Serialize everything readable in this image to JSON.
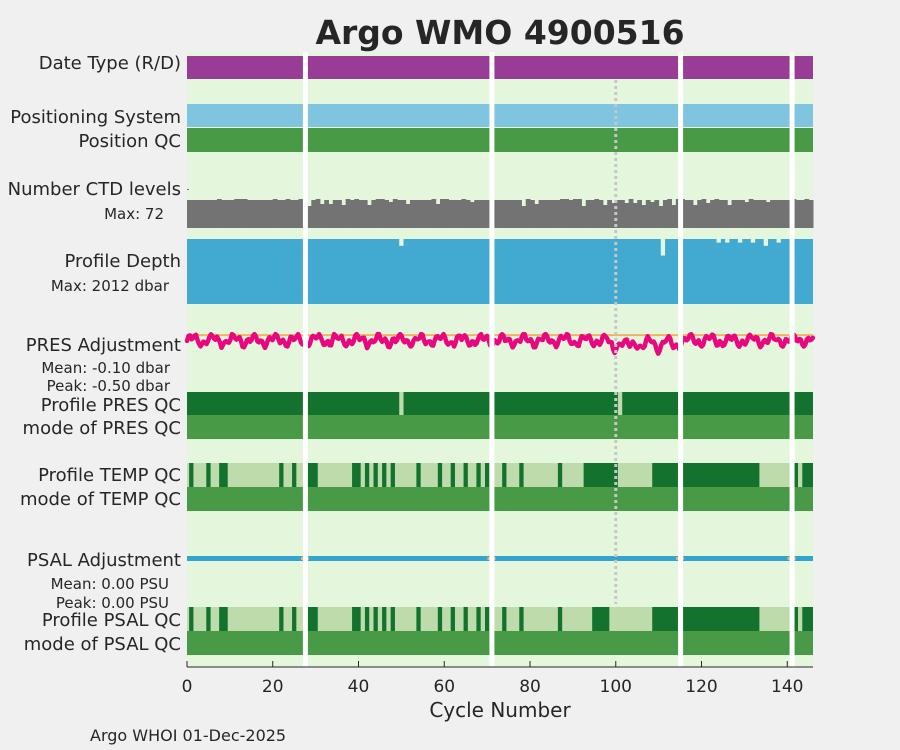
{
  "chart_data": {
    "type": "timeline-panels",
    "title": "Argo WMO 4900516",
    "xlabel": "Cycle Number",
    "xlim": [
      0,
      146
    ],
    "xticks": [
      0,
      20,
      40,
      60,
      80,
      100,
      120,
      140
    ],
    "xtick_labels": [
      "0",
      "20",
      "40",
      "60",
      "80",
      "100",
      "120",
      "140"
    ],
    "footer": "Argo WHOI 01-Dec-2025",
    "gaps": [
      27.5,
      71,
      115,
      141
    ],
    "highlight_cycle": 100,
    "row_labels": {
      "date_type": "Date Type (R/D)",
      "positioning_system": "Positioning System",
      "position_qc": "Position QC",
      "ctd_levels": "Number CTD levels",
      "ctd_max": "Max: 72",
      "profile_depth": "Profile Depth",
      "depth_max": "Max: 2012 dbar",
      "pres_adjustment": "PRES Adjustment",
      "pres_mean": "Mean: -0.10 dbar",
      "pres_peak": "Peak: -0.50 dbar",
      "profile_pres_qc": "Profile PRES QC",
      "mode_pres_qc": "mode of PRES QC",
      "profile_temp_qc": "Profile TEMP QC",
      "mode_temp_qc": "mode of TEMP QC",
      "psal_adjustment": "PSAL Adjustment",
      "psal_mean": "Mean: 0.00 PSU",
      "psal_peak": "Peak: 0.00 PSU",
      "profile_psal_qc": "Profile PSAL QC",
      "mode_psal_qc": "mode of PSAL QC"
    },
    "ctd_levels": {
      "max": 72,
      "gaps_low": [
        28,
        31,
        33,
        36,
        42,
        47,
        51,
        58,
        66,
        78,
        81,
        92,
        97,
        99,
        102,
        104,
        106,
        108,
        110,
        113,
        118,
        121,
        126,
        130,
        135
      ]
    },
    "profile_depth": {
      "max": 2012,
      "shallow_cycles": [
        {
          "cycle": 50,
          "value": 1800
        },
        {
          "cycle": 111,
          "value": 1500
        },
        {
          "cycle": 124,
          "value": 1900
        },
        {
          "cycle": 126,
          "value": 1900
        },
        {
          "cycle": 129,
          "value": 1900
        },
        {
          "cycle": 132,
          "value": 1900
        },
        {
          "cycle": 135,
          "value": 1800
        },
        {
          "cycle": 138,
          "value": 1900
        }
      ]
    },
    "pres_adjustment": {
      "mean": -0.1,
      "peak": -0.5,
      "ylim": [
        -0.6,
        0.1
      ]
    },
    "pres_profile_qc_bad": [
      50,
      101
    ],
    "temp_profile_qc_blocks": [
      {
        "start": 0.5,
        "end": 1.5
      },
      {
        "start": 4.5,
        "end": 5.5
      },
      {
        "start": 7.5,
        "end": 9.5
      },
      {
        "start": 21.5,
        "end": 22.5
      },
      {
        "start": 24.5,
        "end": 25.5
      },
      {
        "start": 28,
        "end": 30.5
      },
      {
        "start": 38.5,
        "end": 40.5
      },
      {
        "start": 41.5,
        "end": 42.5
      },
      {
        "start": 43.5,
        "end": 44.5
      },
      {
        "start": 45.5,
        "end": 46.5
      },
      {
        "start": 47.5,
        "end": 48.5
      },
      {
        "start": 53.5,
        "end": 54.5
      },
      {
        "start": 58.5,
        "end": 59.5
      },
      {
        "start": 61.5,
        "end": 62.5
      },
      {
        "start": 64.5,
        "end": 65.5
      },
      {
        "start": 67.5,
        "end": 68.5
      },
      {
        "start": 69.5,
        "end": 70.5
      },
      {
        "start": 73.5,
        "end": 74.5
      },
      {
        "start": 77.5,
        "end": 78.5
      },
      {
        "start": 86.5,
        "end": 87.5
      },
      {
        "start": 92.5,
        "end": 100.5
      },
      {
        "start": 108.5,
        "end": 114.5
      },
      {
        "start": 115.5,
        "end": 133.5
      },
      {
        "start": 141,
        "end": 142.5
      },
      {
        "start": 143.5,
        "end": 146
      }
    ],
    "psal_profile_qc_blocks": [
      {
        "start": 0.5,
        "end": 1.5
      },
      {
        "start": 4.5,
        "end": 5.5
      },
      {
        "start": 7.5,
        "end": 9.5
      },
      {
        "start": 21.5,
        "end": 22.5
      },
      {
        "start": 24.5,
        "end": 25.5
      },
      {
        "start": 28,
        "end": 30.5
      },
      {
        "start": 38.5,
        "end": 40.5
      },
      {
        "start": 41.5,
        "end": 42.5
      },
      {
        "start": 43.5,
        "end": 44.5
      },
      {
        "start": 45.5,
        "end": 46.5
      },
      {
        "start": 47.5,
        "end": 48.5
      },
      {
        "start": 53.5,
        "end": 54.5
      },
      {
        "start": 58.5,
        "end": 59.5
      },
      {
        "start": 61.5,
        "end": 62.5
      },
      {
        "start": 64.5,
        "end": 65.5
      },
      {
        "start": 67.5,
        "end": 68.5
      },
      {
        "start": 69.5,
        "end": 70.5
      },
      {
        "start": 73.5,
        "end": 74.5
      },
      {
        "start": 77.5,
        "end": 78.5
      },
      {
        "start": 86.5,
        "end": 87.5
      },
      {
        "start": 94.5,
        "end": 98.5
      },
      {
        "start": 108.5,
        "end": 114.5
      },
      {
        "start": 115.5,
        "end": 133.5
      },
      {
        "start": 141,
        "end": 142.5
      },
      {
        "start": 143.5,
        "end": 146
      }
    ],
    "psal_adjustment": {
      "mean": 0.0,
      "peak": 0.0
    },
    "colors": {
      "plot_bg": "#e4f7dd",
      "figure_bg": "#f0f0f0",
      "title": "#1b8fc3",
      "date_type": "#993c96",
      "positioning": "#7fc5df",
      "qc_good": "#489a46",
      "qc_dark": "#13722d",
      "qc_light": "#bedbab",
      "ctd_bar": "#737373",
      "profile_depth": "#42aad0",
      "pres_line": "#e9077f",
      "pres_mean_line": "#f0b35f",
      "psal_line": "#31a5cd",
      "psal_gap": "#f0b35f",
      "pres_label": "#e9077f",
      "psal_label": "#1b8fc3",
      "highlight": "#c6c6c6",
      "gap": "#ffffff",
      "text": "#262626"
    }
  }
}
